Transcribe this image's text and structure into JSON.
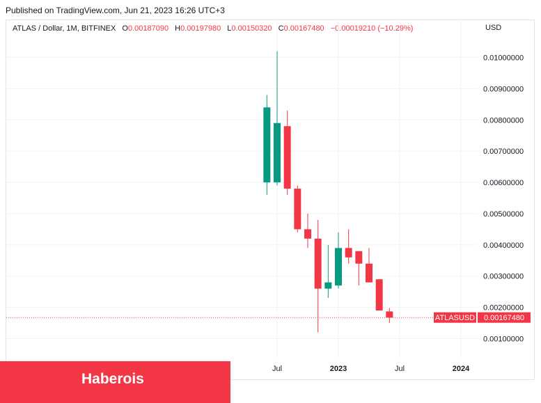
{
  "header": {
    "published": "Published on TradingView.com, Jun 21, 2023 16:26 UTC+3"
  },
  "legend": {
    "symbol": "ATLAS / Dollar, 1M, BITFINEX",
    "o_label": "O",
    "o_value": "0.00187090",
    "h_label": "H",
    "h_value": "0.00197980",
    "l_label": "L",
    "l_value": "0.00150320",
    "c_label": "C",
    "c_value": "0.00167480",
    "change": "−0.00019210 (−10.29%)"
  },
  "axis": {
    "currency": "USD"
  },
  "price_tag": {
    "symbol": "ATLASUSD",
    "value": "0.00167480"
  },
  "brand": {
    "label": "Haberois"
  },
  "colors": {
    "up": "#089981",
    "down": "#f23645",
    "grid": "#f0f3fa",
    "text": "#131722",
    "brand": "#f23645"
  },
  "chart_data": {
    "type": "candlestick",
    "interval": "1M",
    "ylim": [
      0,
      0.0105
    ],
    "y_ticks": [
      "0.01000000",
      "0.00900000",
      "0.00800000",
      "0.00700000",
      "0.00600000",
      "0.00500000",
      "0.00400000",
      "0.00300000",
      "0.00200000",
      "0.00100000"
    ],
    "x_ticks": [
      {
        "label": "Jul",
        "date": "2022-07"
      },
      {
        "label": "2023",
        "date": "2023-01"
      },
      {
        "label": "Jul",
        "date": "2023-07"
      },
      {
        "label": "2024",
        "date": "2024-01"
      }
    ],
    "last_price": 0.0016748,
    "candles": [
      {
        "date": "2022-06",
        "open": 0.006,
        "high": 0.0088,
        "low": 0.0056,
        "close": 0.0084
      },
      {
        "date": "2022-07",
        "open": 0.006,
        "high": 0.0102,
        "low": 0.0059,
        "close": 0.0079
      },
      {
        "date": "2022-08",
        "open": 0.0078,
        "high": 0.0083,
        "low": 0.0056,
        "close": 0.0058
      },
      {
        "date": "2022-09",
        "open": 0.0058,
        "high": 0.0059,
        "low": 0.0044,
        "close": 0.0045
      },
      {
        "date": "2022-10",
        "open": 0.0045,
        "high": 0.005,
        "low": 0.0039,
        "close": 0.0042
      },
      {
        "date": "2022-11",
        "open": 0.0042,
        "high": 0.0048,
        "low": 0.0012,
        "close": 0.0026
      },
      {
        "date": "2022-12",
        "open": 0.0026,
        "high": 0.004,
        "low": 0.0023,
        "close": 0.0028
      },
      {
        "date": "2023-01",
        "open": 0.0027,
        "high": 0.0044,
        "low": 0.0026,
        "close": 0.0039
      },
      {
        "date": "2023-02",
        "open": 0.0039,
        "high": 0.0045,
        "low": 0.0034,
        "close": 0.0036
      },
      {
        "date": "2023-03",
        "open": 0.0038,
        "high": 0.0038,
        "low": 0.0027,
        "close": 0.0034
      },
      {
        "date": "2023-04",
        "open": 0.0034,
        "high": 0.0039,
        "low": 0.0028,
        "close": 0.0028
      },
      {
        "date": "2023-05",
        "open": 0.0029,
        "high": 0.0029,
        "low": 0.0019,
        "close": 0.0019
      },
      {
        "date": "2023-06",
        "open": 0.0018709,
        "high": 0.0019798,
        "low": 0.0015032,
        "close": 0.0016748
      }
    ]
  }
}
